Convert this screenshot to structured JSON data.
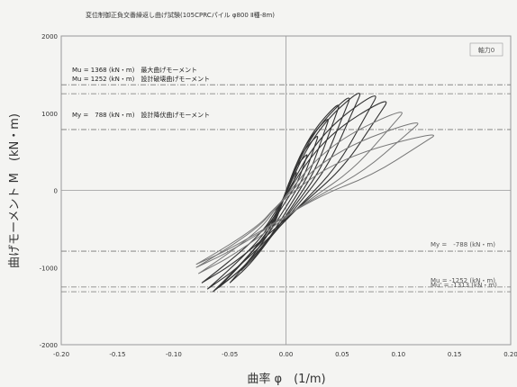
{
  "chart_data": {
    "type": "line",
    "title": "変位制御正負交番繰返し曲げ試験(105CPRCパイル φ800 Ⅱ種-8m)",
    "xlabel": "曲率 φ　(1/m)",
    "ylabel": "曲げモーメント M　(kN・m)",
    "xlim": [
      -0.2,
      0.2
    ],
    "ylim": [
      -2000,
      2000
    ],
    "x_ticks": [
      -0.2,
      -0.15,
      -0.1,
      -0.05,
      0.0,
      0.05,
      0.1,
      0.15,
      0.2
    ],
    "x_tick_labels": [
      "-0.20",
      "-0.15",
      "-0.10",
      "-0.05",
      "0.00",
      "0.05",
      "0.10",
      "0.15",
      "0.20"
    ],
    "y_ticks": [
      -2000,
      -1000,
      0,
      1000,
      2000
    ],
    "y_tick_labels": [
      "-2000",
      "-1000",
      "0",
      "1000",
      "2000"
    ],
    "legend_box": "軸力0",
    "reference_lines": [
      {
        "value": 1368,
        "label": "Mu = 1368 (kN・m)　最大曲げモーメント"
      },
      {
        "value": 1252,
        "label": "Mu = 1252 (kN・m)　設計破壊曲げモーメント"
      },
      {
        "value": 788,
        "label": "My =　788 (kN・m)　設計降伏曲げモーメント"
      },
      {
        "value": -788,
        "label": "My =　-788 (kN・m)"
      },
      {
        "value": -1252,
        "label": "Mu = -1252 (kN・m)"
      },
      {
        "value": -1313,
        "label": "Mu' = -1313 (kN・m)"
      }
    ],
    "loops": [
      {
        "phi_max": 0.01,
        "m_max": 250,
        "phi_min": -0.01,
        "m_min": -260
      },
      {
        "phi_max": 0.02,
        "m_max": 500,
        "phi_min": -0.02,
        "m_min": -520
      },
      {
        "phi_max": 0.03,
        "m_max": 760,
        "phi_min": -0.03,
        "m_min": -790
      },
      {
        "phi_max": 0.04,
        "m_max": 1000,
        "phi_min": -0.04,
        "m_min": -1040
      },
      {
        "phi_max": 0.05,
        "m_max": 1200,
        "phi_min": -0.05,
        "m_min": -1200
      },
      {
        "phi_max": 0.06,
        "m_max": 1300,
        "phi_min": -0.06,
        "m_min": -1260
      },
      {
        "phi_max": 0.07,
        "m_max": 1368,
        "phi_min": -0.065,
        "m_min": -1313
      },
      {
        "phi_max": 0.085,
        "m_max": 1330,
        "phi_min": -0.07,
        "m_min": -1280
      },
      {
        "phi_max": 0.095,
        "m_max": 1250,
        "phi_min": -0.075,
        "m_min": -1200
      },
      {
        "phi_max": 0.11,
        "m_max": 1100,
        "phi_min": -0.078,
        "m_min": -1080
      },
      {
        "phi_max": 0.125,
        "m_max": 950,
        "phi_min": -0.08,
        "m_min": -1000
      },
      {
        "phi_max": 0.14,
        "m_max": 780,
        "phi_min": -0.08,
        "m_min": -960
      }
    ]
  }
}
